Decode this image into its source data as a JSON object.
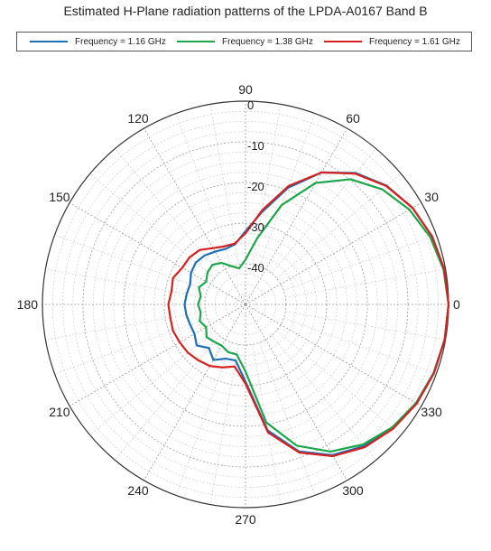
{
  "chart_data": {
    "type": "polar-line",
    "title": "Estimated H-Plane radiation patterns of the LPDA-A0167 Band B",
    "angle_unit": "deg",
    "angle_ticks": [
      0,
      30,
      60,
      90,
      120,
      150,
      180,
      210,
      240,
      270,
      300,
      330
    ],
    "angle_tick_labels": [
      "0",
      "30",
      "60",
      "90",
      "120",
      "150",
      "180",
      "210",
      "240",
      "270",
      "300",
      "330"
    ],
    "radial_range": [
      -50,
      0
    ],
    "radial_ticks": [
      0,
      -10,
      -20,
      -30,
      -40
    ],
    "radial_tick_labels": [
      "0",
      "-10",
      "-20",
      "-30",
      "-40"
    ],
    "radial_minor_step": 2.5,
    "grid": true,
    "legend_position": "top",
    "series": [
      {
        "name": "Frequency = 1.16 GHz",
        "color": "#1f6fb4",
        "angles": [
          0,
          10,
          20,
          30,
          40,
          50,
          60,
          70,
          80,
          90,
          100,
          110,
          120,
          130,
          140,
          150,
          160,
          170,
          180,
          190,
          200,
          210,
          220,
          230,
          240,
          250,
          260,
          270,
          280,
          290,
          300,
          310,
          320,
          330,
          340,
          350,
          360
        ],
        "values": [
          0,
          -0.3,
          -1.1,
          -2.5,
          -4.6,
          -7.8,
          -12.5,
          -19.5,
          -27,
          -32,
          -35,
          -35.5,
          -35,
          -34.3,
          -34,
          -34.5,
          -35.5,
          -35.3,
          -35,
          -35.2,
          -35.5,
          -35.5,
          -34.3,
          -36,
          -34.2,
          -35.8,
          -36,
          -31,
          -18.5,
          -11.5,
          -7.2,
          -4.5,
          -2.7,
          -1.5,
          -0.7,
          -0.2,
          0
        ]
      },
      {
        "name": "Frequency = 1.38 GHz",
        "color": "#1ca64a",
        "angles": [
          0,
          10,
          20,
          30,
          40,
          50,
          60,
          70,
          80,
          90,
          100,
          110,
          120,
          130,
          140,
          150,
          160,
          170,
          180,
          190,
          200,
          210,
          220,
          230,
          240,
          250,
          260,
          270,
          280,
          290,
          300,
          310,
          320,
          330,
          340,
          350,
          360
        ],
        "values": [
          0,
          -0.5,
          -1.6,
          -3.4,
          -6,
          -9.8,
          -15.5,
          -24,
          -33.5,
          -39,
          -41,
          -40,
          -38.2,
          -37.3,
          -37.8,
          -38.8,
          -37.8,
          -38.8,
          -38.3,
          -38.8,
          -38,
          -38.8,
          -37.5,
          -38,
          -38.3,
          -37.5,
          -37.5,
          -33.5,
          -20.5,
          -13,
          -8.2,
          -5,
          -2.9,
          -1.5,
          -0.7,
          -0.2,
          0
        ]
      },
      {
        "name": "Frequency = 1.61 GHz",
        "color": "#d62020",
        "angles": [
          0,
          10,
          20,
          30,
          40,
          50,
          60,
          70,
          80,
          90,
          100,
          110,
          120,
          130,
          140,
          150,
          160,
          170,
          180,
          190,
          200,
          210,
          220,
          230,
          240,
          250,
          260,
          270,
          280,
          290,
          300,
          310,
          320,
          330,
          340,
          350,
          360
        ],
        "values": [
          0,
          -0.3,
          -1.1,
          -2.5,
          -4.7,
          -8,
          -12.5,
          -19,
          -26.5,
          -32.5,
          -34.8,
          -34.8,
          -34,
          -32.5,
          -32,
          -32,
          -31,
          -31.5,
          -31,
          -31.2,
          -31,
          -31.3,
          -31.5,
          -32,
          -32.5,
          -33.5,
          -34.5,
          -30.5,
          -18,
          -11.2,
          -6.9,
          -4.2,
          -2.5,
          -1.3,
          -0.6,
          -0.2,
          0
        ]
      }
    ]
  }
}
